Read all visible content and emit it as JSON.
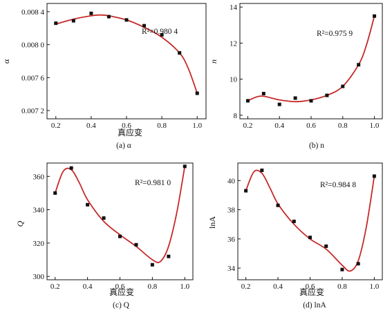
{
  "chart_data": [
    {
      "type": "scatter",
      "caption": "(a) α",
      "xlabel": "真应变",
      "ylabel": "α",
      "annotation": "R²=0.980 4",
      "xlim": [
        0.15,
        1.05
      ],
      "xticks": [
        "0.2",
        "0.4",
        "0.6",
        "0.8",
        "1.0"
      ],
      "yticks": [
        "0.007 2",
        "0.007 6",
        "0.008 0",
        "0.008 4"
      ],
      "grid": false,
      "x": [
        0.2,
        0.3,
        0.4,
        0.5,
        0.6,
        0.7,
        0.8,
        0.9,
        1.0
      ],
      "y": [
        0.00826,
        0.00829,
        0.00838,
        0.00834,
        0.0083,
        0.00823,
        0.00812,
        0.0079,
        0.00741
      ],
      "fit": {
        "x": [
          0.2,
          0.3,
          0.4,
          0.45,
          0.5,
          0.6,
          0.7,
          0.8,
          0.9,
          0.95,
          1.0
        ],
        "y": [
          0.00825,
          0.00831,
          0.00835,
          0.00836,
          0.00835,
          0.0083,
          0.00821,
          0.00809,
          0.0079,
          0.00771,
          0.00741
        ]
      }
    },
    {
      "type": "scatter",
      "caption": "(b) n",
      "xlabel": "",
      "ylabel": "n",
      "annotation": "R²=0.975 9",
      "xlim": [
        0.15,
        1.05
      ],
      "xticks": [
        "0.2",
        "0.4",
        "0.6",
        "0.8",
        "1.0"
      ],
      "yticks": [
        "8",
        "10",
        "12",
        "14"
      ],
      "grid": false,
      "x": [
        0.2,
        0.3,
        0.4,
        0.5,
        0.6,
        0.7,
        0.8,
        0.9,
        1.0
      ],
      "y": [
        8.8,
        9.2,
        8.6,
        8.95,
        8.8,
        9.1,
        9.6,
        10.8,
        13.5
      ],
      "fit": {
        "x": [
          0.2,
          0.25,
          0.3,
          0.4,
          0.5,
          0.6,
          0.7,
          0.8,
          0.9,
          0.95,
          1.0
        ],
        "y": [
          8.8,
          9.0,
          9.05,
          8.85,
          8.75,
          8.85,
          9.1,
          9.6,
          10.8,
          11.9,
          13.5
        ]
      }
    },
    {
      "type": "scatter",
      "caption": "(c) Q",
      "xlabel": "真应变",
      "ylabel": "Q",
      "annotation": "R²=0.981 0",
      "xlim": [
        0.15,
        1.05
      ],
      "xticks": [
        "0.2",
        "0.4",
        "0.6",
        "0.8",
        "1.0"
      ],
      "yticks": [
        "300",
        "320",
        "340",
        "360"
      ],
      "grid": false,
      "x": [
        0.2,
        0.3,
        0.4,
        0.5,
        0.6,
        0.7,
        0.8,
        0.9,
        1.0
      ],
      "y": [
        350,
        365,
        343,
        335,
        324,
        319,
        307,
        312,
        366
      ],
      "fit": {
        "x": [
          0.2,
          0.25,
          0.3,
          0.35,
          0.4,
          0.5,
          0.6,
          0.7,
          0.8,
          0.85,
          0.9,
          0.95,
          1.0
        ],
        "y": [
          350,
          363,
          364,
          356,
          346,
          333,
          325,
          318,
          310,
          309,
          318,
          338,
          366
        ]
      }
    },
    {
      "type": "scatter",
      "caption": "(d) lnA",
      "xlabel": "真应变",
      "ylabel": "lnA",
      "annotation": "R²=0.984 8",
      "xlim": [
        0.15,
        1.05
      ],
      "xticks": [
        "0.2",
        "0.4",
        "0.6",
        "0.8",
        "1.0"
      ],
      "yticks": [
        "34",
        "36",
        "38",
        "40"
      ],
      "grid": false,
      "x": [
        0.2,
        0.3,
        0.4,
        0.5,
        0.6,
        0.7,
        0.8,
        0.9,
        1.0
      ],
      "y": [
        39.3,
        40.7,
        38.3,
        37.2,
        36.1,
        35.5,
        33.9,
        34.3,
        40.3
      ],
      "fit": {
        "x": [
          0.2,
          0.25,
          0.3,
          0.35,
          0.4,
          0.5,
          0.6,
          0.7,
          0.8,
          0.85,
          0.9,
          0.95,
          1.0
        ],
        "y": [
          39.3,
          40.6,
          40.5,
          39.5,
          38.4,
          37.0,
          36.0,
          35.3,
          34.2,
          33.8,
          34.5,
          36.8,
          40.3
        ]
      }
    }
  ],
  "colors": {
    "fit_line": "#c62828",
    "marker": "#111111",
    "axis": "#111111"
  }
}
